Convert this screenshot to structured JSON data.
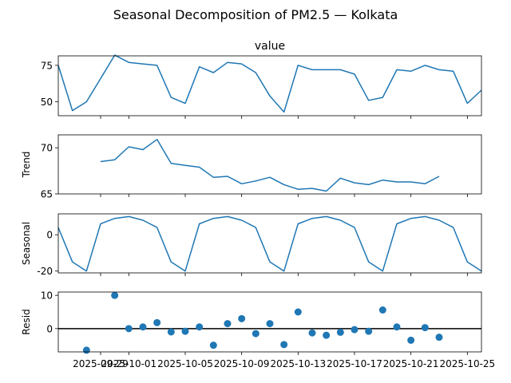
{
  "suptitle": "Seasonal Decomposition of PM2.5 — Kolkata",
  "chart_data": [
    {
      "type": "line",
      "panel": "observed",
      "title": "value",
      "ylabel": "",
      "ylim": [
        40.5,
        81.5
      ],
      "yticks": [
        50,
        75
      ],
      "x": [
        "2025-09-26",
        "2025-09-27",
        "2025-09-28",
        "2025-09-29",
        "2025-09-30",
        "2025-10-01",
        "2025-10-02",
        "2025-10-03",
        "2025-10-04",
        "2025-10-05",
        "2025-10-06",
        "2025-10-07",
        "2025-10-08",
        "2025-10-09",
        "2025-10-10",
        "2025-10-11",
        "2025-10-12",
        "2025-10-13",
        "2025-10-14",
        "2025-10-15",
        "2025-10-16",
        "2025-10-17",
        "2025-10-18",
        "2025-10-19",
        "2025-10-20",
        "2025-10-21",
        "2025-10-22",
        "2025-10-23",
        "2025-10-24",
        "2025-10-25",
        "2025-10-26"
      ],
      "values": [
        75,
        44,
        50,
        66,
        82,
        77,
        76,
        75,
        53,
        49,
        74,
        70,
        77,
        76,
        70,
        54,
        43,
        75,
        72,
        72,
        72,
        69,
        51,
        53,
        72,
        71,
        75,
        72,
        71,
        49,
        58
      ],
      "color": "#1f77b4"
    },
    {
      "type": "line",
      "panel": "trend",
      "title": "",
      "ylabel": "Trend",
      "ylim": [
        65,
        71.4
      ],
      "yticks": [
        65,
        70
      ],
      "x": [
        "2025-09-29",
        "2025-09-30",
        "2025-10-01",
        "2025-10-02",
        "2025-10-03",
        "2025-10-04",
        "2025-10-05",
        "2025-10-06",
        "2025-10-07",
        "2025-10-08",
        "2025-10-09",
        "2025-10-10",
        "2025-10-11",
        "2025-10-12",
        "2025-10-13",
        "2025-10-14",
        "2025-10-15",
        "2025-10-16",
        "2025-10-17",
        "2025-10-18",
        "2025-10-19",
        "2025-10-20",
        "2025-10-21",
        "2025-10-22",
        "2025-10-23"
      ],
      "values": [
        68.5,
        68.7,
        70.1,
        69.8,
        70.9,
        68.3,
        68.1,
        67.9,
        66.8,
        66.9,
        66.1,
        66.4,
        66.8,
        66.0,
        65.5,
        65.6,
        65.3,
        66.7,
        66.2,
        66.0,
        66.5,
        66.3,
        66.3,
        66.1,
        66.9
      ],
      "color": "#1f77b4"
    },
    {
      "type": "line",
      "panel": "seasonal",
      "title": "",
      "ylabel": "Seasonal",
      "ylim": [
        -21,
        11.5
      ],
      "yticks": [
        -20,
        0
      ],
      "x": [
        "2025-09-26",
        "2025-09-27",
        "2025-09-28",
        "2025-09-29",
        "2025-09-30",
        "2025-10-01",
        "2025-10-02",
        "2025-10-03",
        "2025-10-04",
        "2025-10-05",
        "2025-10-06",
        "2025-10-07",
        "2025-10-08",
        "2025-10-09",
        "2025-10-10",
        "2025-10-11",
        "2025-10-12",
        "2025-10-13",
        "2025-10-14",
        "2025-10-15",
        "2025-10-16",
        "2025-10-17",
        "2025-10-18",
        "2025-10-19",
        "2025-10-20",
        "2025-10-21",
        "2025-10-22",
        "2025-10-23",
        "2025-10-24",
        "2025-10-25",
        "2025-10-26"
      ],
      "values": [
        4,
        -15,
        -20,
        6,
        9,
        10,
        8,
        4,
        -15,
        -20,
        6,
        9,
        10,
        8,
        4,
        -15,
        -20,
        6,
        9,
        10,
        8,
        4,
        -15,
        -20,
        6,
        9,
        10,
        8,
        4,
        -15,
        -20
      ],
      "color": "#1f77b4"
    },
    {
      "type": "scatter",
      "panel": "resid",
      "title": "",
      "ylabel": "Resid",
      "ylim": [
        -7,
        11
      ],
      "yticks": [
        0,
        10
      ],
      "zero_line": true,
      "x": [
        "2025-09-28",
        "2025-09-30",
        "2025-10-01",
        "2025-10-02",
        "2025-10-03",
        "2025-10-04",
        "2025-10-05",
        "2025-10-06",
        "2025-10-07",
        "2025-10-08",
        "2025-10-09",
        "2025-10-10",
        "2025-10-11",
        "2025-10-12",
        "2025-10-13",
        "2025-10-14",
        "2025-10-15",
        "2025-10-16",
        "2025-10-17",
        "2025-10-18",
        "2025-10-19",
        "2025-10-20",
        "2025-10-21",
        "2025-10-22",
        "2025-10-23"
      ],
      "values": [
        -6.5,
        10,
        0,
        0.5,
        1.8,
        -1,
        -0.8,
        0.5,
        -5,
        1.5,
        3,
        -1.5,
        1.5,
        -4.8,
        5,
        -1.3,
        -2,
        -1.1,
        -0.3,
        -0.8,
        5.6,
        0.5,
        -3.5,
        0.3,
        -2.6
      ],
      "color": "#1f77b4"
    }
  ],
  "xticks": [
    "2025-09-29",
    "2025-10-01",
    "2025-10-05",
    "2025-10-09",
    "2025-10-13",
    "2025-10-17",
    "2025-10-21",
    "2025-10-25"
  ]
}
